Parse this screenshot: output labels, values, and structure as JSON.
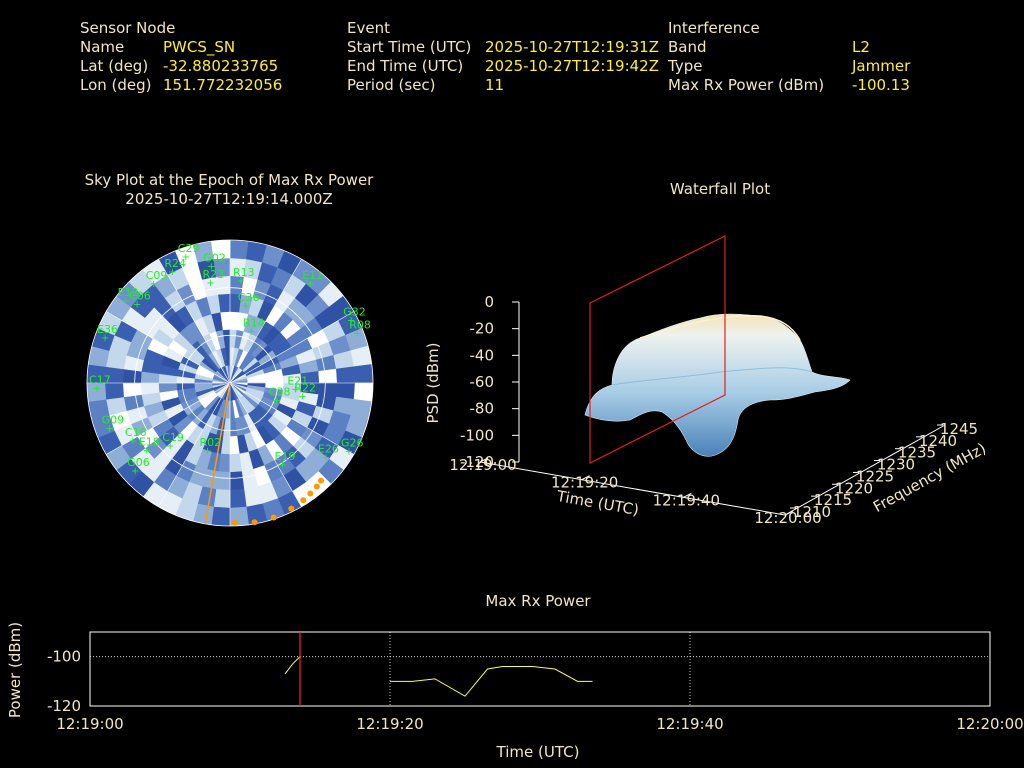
{
  "info": {
    "sensor": {
      "heading": "Sensor Node",
      "name_label": "Name",
      "name": "PWCS_SN",
      "lat_label": "Lat (deg)",
      "lat": "-32.880233765",
      "lon_label": "Lon (deg)",
      "lon": "151.772232056"
    },
    "event": {
      "heading": "Event",
      "start_label": "Start Time (UTC)",
      "start": "2025-10-27T12:19:31Z",
      "end_label": "End Time (UTC)",
      "end": "2025-10-27T12:19:42Z",
      "period_label": "Period (sec)",
      "period": "11"
    },
    "interference": {
      "heading": "Interference",
      "band_label": "Band",
      "band": "L2",
      "type_label": "Type",
      "type": "Jammer",
      "power_label": "Max Rx Power (dBm)",
      "power": "-100.13"
    }
  },
  "colors": {
    "label": "#f2e6c0",
    "value": "#ffee33",
    "satellite": "#22ee22",
    "track": "#ff9900",
    "line": "#ffff44",
    "marker": "#ff2222",
    "grid": "#ffffff"
  },
  "chart_data": [
    {
      "type": "scatter",
      "title": "Sky Plot at the Epoch of Max Rx Power",
      "subtitle": "2025-10-27T12:19:14.000Z",
      "satellites": [
        {
          "id": "C29",
          "az": 340,
          "el": 5
        },
        {
          "id": "G02",
          "az": 350,
          "el": 15
        },
        {
          "id": "R24",
          "az": 332,
          "el": 10
        },
        {
          "id": "C09",
          "az": 322,
          "el": 10
        },
        {
          "id": "R13",
          "az": 5,
          "el": 25
        },
        {
          "id": "R23",
          "az": 348,
          "el": 25
        },
        {
          "id": "E12",
          "az": 308,
          "el": 5
        },
        {
          "id": "C06",
          "az": 310,
          "el": 12
        },
        {
          "id": "C36",
          "az": 10,
          "el": 40
        },
        {
          "id": "E11",
          "az": 38,
          "el": 10
        },
        {
          "id": "G32",
          "az": 62,
          "el": 5
        },
        {
          "id": "R08",
          "az": 68,
          "el": 5
        },
        {
          "id": "E36",
          "az": 290,
          "el": 5
        },
        {
          "id": "C17",
          "az": 268,
          "el": 5
        },
        {
          "id": "R14",
          "az": 20,
          "el": 55
        },
        {
          "id": "E21",
          "az": 95,
          "el": 50
        },
        {
          "id": "R22",
          "az": 100,
          "el": 45
        },
        {
          "id": "G09",
          "az": 250,
          "el": 8
        },
        {
          "id": "C19",
          "az": 225,
          "el": 35
        },
        {
          "id": "R02",
          "az": 200,
          "el": 45
        },
        {
          "id": "E19",
          "az": 148,
          "el": 30
        },
        {
          "id": "E18",
          "az": 232,
          "el": 22
        },
        {
          "id": "C16",
          "az": 240,
          "el": 18
        },
        {
          "id": "G06",
          "az": 228,
          "el": 8
        },
        {
          "id": "E26",
          "az": 128,
          "el": 15
        },
        {
          "id": "G26",
          "az": 120,
          "el": 5
        },
        {
          "id": "C38",
          "az": 110,
          "el": 60
        }
      ],
      "track": [
        {
          "az": 178,
          "el": 2
        },
        {
          "az": 170,
          "el": 1
        },
        {
          "az": 162,
          "el": 1
        },
        {
          "az": 154,
          "el": 2
        },
        {
          "az": 148,
          "el": 3
        },
        {
          "az": 144,
          "el": 4
        },
        {
          "az": 140,
          "el": 5
        },
        {
          "az": 137,
          "el": 6
        }
      ],
      "bearing_az": 190
    },
    {
      "type": "area",
      "title": "Waterfall Plot",
      "xlabel": "Time (UTC)",
      "ylabel": "Frequency (MHz)",
      "zlabel": "PSD (dBm)",
      "x_ticks": [
        "12:19:00",
        "12:19:20",
        "12:19:40",
        "12:20:00"
      ],
      "y_ticks": [
        "1210",
        "1215",
        "1220",
        "1225",
        "1230",
        "1235",
        "1240",
        "1245"
      ],
      "z_ticks": [
        "0",
        "-20",
        "-40",
        "-60",
        "-80",
        "-100",
        "-120"
      ],
      "zlim": [
        -120,
        0
      ],
      "marker_time": "12:19:14"
    },
    {
      "type": "line",
      "title": "Max Rx Power",
      "xlabel": "Time (UTC)",
      "ylabel": "Power (dBm)",
      "x_ticks": [
        "12:19:00",
        "12:19:20",
        "12:19:40",
        "12:20:00"
      ],
      "y_ticks": [
        "-100",
        "-120"
      ],
      "xlim": [
        0,
        60
      ],
      "ylim": [
        -120,
        -90
      ],
      "series": [
        {
          "x": [
            13,
            13.5,
            14
          ],
          "y": [
            -107,
            -103,
            -100
          ]
        },
        {
          "x": [
            20,
            21.5,
            23,
            25,
            26.5,
            27.5,
            29.5,
            31,
            32.5,
            33.5
          ],
          "y": [
            -110,
            -110,
            -109,
            -116,
            -105,
            -104,
            -104,
            -105,
            -110,
            -110
          ]
        }
      ],
      "marker_x": 14
    }
  ]
}
